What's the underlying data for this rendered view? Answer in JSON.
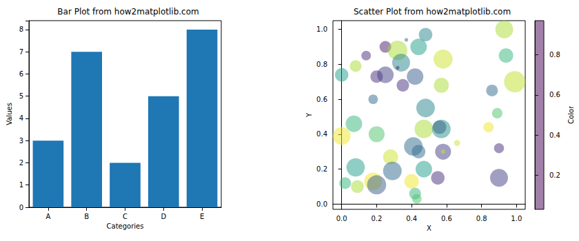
{
  "chart_data": [
    {
      "type": "bar",
      "title": "Bar Plot from how2matplotlib.com",
      "x_label": "Categories",
      "y_label": "Values",
      "categories": [
        "A",
        "B",
        "C",
        "D",
        "E"
      ],
      "values": [
        3,
        7,
        2,
        5,
        8
      ],
      "color": "#1f77b4",
      "ylim": [
        0,
        8.4
      ],
      "yticks": [
        0,
        1,
        2,
        3,
        4,
        5,
        6,
        7,
        8
      ],
      "grid": false
    },
    {
      "type": "scatter",
      "title": "Scatter Plot from how2matplotlib.com",
      "x_label": "X",
      "y_label": "Y",
      "x": [
        0.93,
        0.48,
        0.37,
        0.14,
        0.25,
        0.32,
        0.44,
        0.94,
        0.58,
        0.34,
        0.08,
        0.0,
        0.2,
        0.25,
        0.42,
        0.32,
        0.35,
        0.57,
        0.99,
        0.86,
        0.18,
        0.48,
        0.89,
        0.07,
        0.47,
        0.56,
        0.57,
        0.84,
        0.0,
        0.2,
        0.66,
        0.41,
        0.44,
        0.58,
        0.58,
        0.9,
        0.28,
        0.08,
        0.29,
        0.47,
        0.02,
        0.09,
        0.18,
        0.2,
        0.4,
        0.55,
        0.9,
        0.42,
        0.43
      ],
      "y": [
        1.0,
        0.97,
        0.94,
        0.85,
        0.9,
        0.88,
        0.9,
        0.85,
        0.83,
        0.81,
        0.79,
        0.74,
        0.73,
        0.74,
        0.73,
        0.78,
        0.68,
        0.68,
        0.7,
        0.65,
        0.6,
        0.55,
        0.52,
        0.46,
        0.43,
        0.44,
        0.43,
        0.44,
        0.39,
        0.4,
        0.35,
        0.33,
        0.3,
        0.3,
        0.3,
        0.32,
        0.27,
        0.21,
        0.19,
        0.2,
        0.12,
        0.1,
        0.13,
        0.11,
        0.13,
        0.15,
        0.15,
        0.06,
        0.03
      ],
      "color_values": [
        0.85,
        0.45,
        0.35,
        0.15,
        0.1,
        0.85,
        0.55,
        0.65,
        0.9,
        0.45,
        0.85,
        0.55,
        0.15,
        0.2,
        0.3,
        0.1,
        0.15,
        0.85,
        0.88,
        0.35,
        0.35,
        0.45,
        0.7,
        0.65,
        0.85,
        0.15,
        0.5,
        0.95,
        0.95,
        0.7,
        0.9,
        0.35,
        0.35,
        0.2,
        0.9,
        0.15,
        0.9,
        0.55,
        0.35,
        0.55,
        0.65,
        0.85,
        0.95,
        0.3,
        0.95,
        0.15,
        0.2,
        0.65,
        0.7
      ],
      "sizes": [
        350,
        200,
        15,
        100,
        150,
        420,
        300,
        230,
        400,
        350,
        150,
        200,
        170,
        300,
        300,
        15,
        170,
        250,
        500,
        150,
        100,
        380,
        120,
        300,
        380,
        200,
        380,
        120,
        350,
        280,
        40,
        380,
        200,
        280,
        20,
        110,
        250,
        370,
        380,
        300,
        150,
        180,
        350,
        400,
        230,
        200,
        350,
        150,
        100
      ],
      "xlim": [
        -0.05,
        1.05
      ],
      "xticks": [
        {
          "value": 0,
          "label": "0.0"
        },
        0.2,
        0.4,
        0.6,
        0.8,
        {
          "value": 1,
          "label": "1.0"
        }
      ],
      "ylim": [
        -0.03,
        1.05
      ],
      "yticks": [
        {
          "value": 0,
          "label": "0.0"
        },
        0.2,
        0.4,
        0.6,
        0.8,
        {
          "value": 1,
          "label": "1.0"
        }
      ],
      "colorbar": {
        "label": "Color",
        "range": [
          0.03,
          0.97
        ],
        "ticks": [
          0.2,
          0.4,
          0.6,
          0.8
        ]
      },
      "grid": false
    }
  ]
}
